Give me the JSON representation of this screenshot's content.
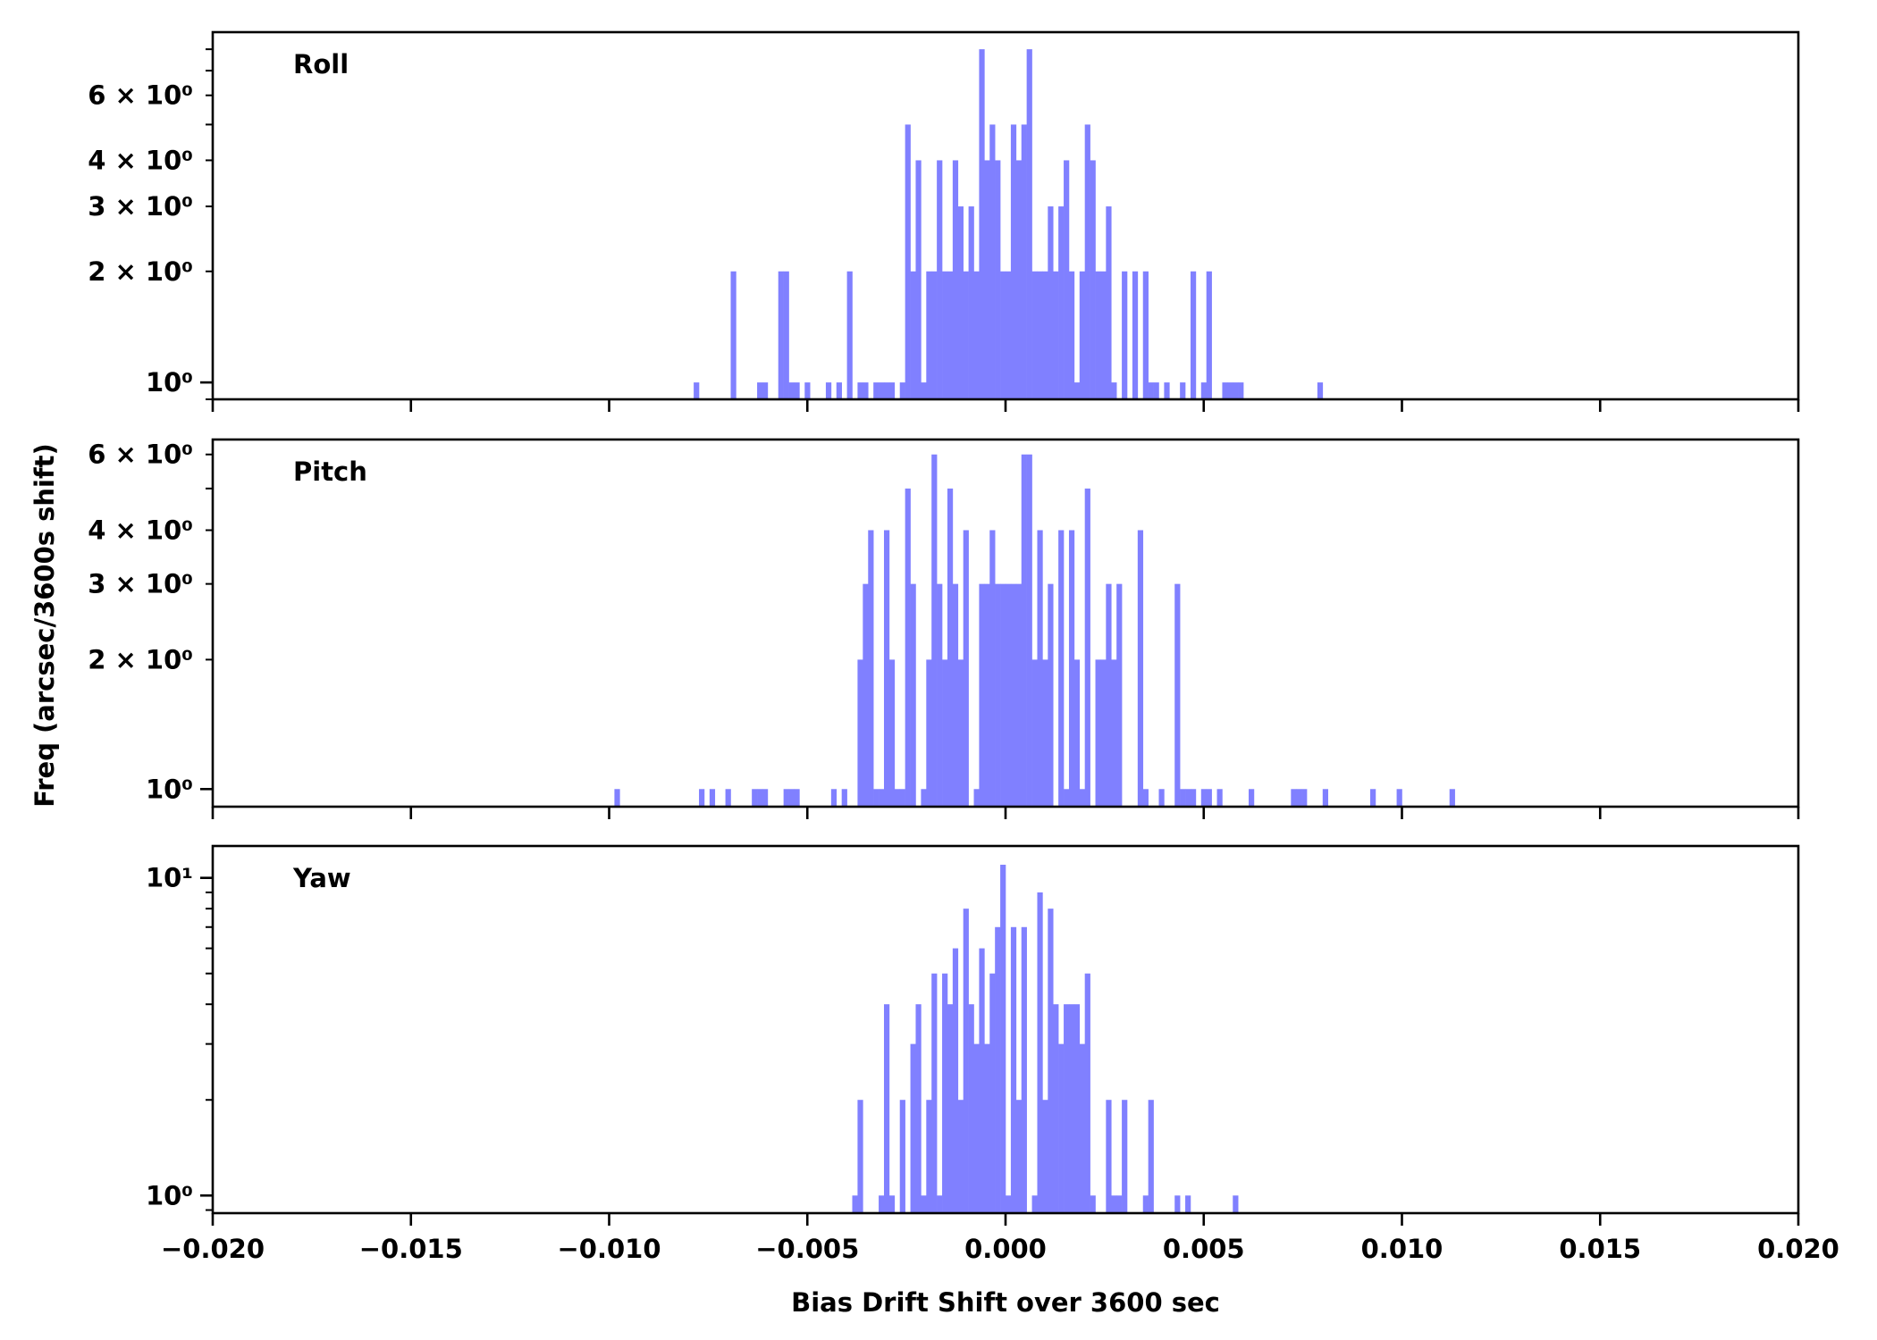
{
  "chart_data": [
    {
      "type": "bar",
      "title": "Roll",
      "xlim": [
        -0.02,
        0.02
      ],
      "x_ticks": [
        -0.02,
        -0.015,
        -0.01,
        -0.005,
        0.0,
        0.005,
        0.01,
        0.015,
        0.02
      ],
      "y_scale": "log",
      "ylim": [
        0.9,
        8.9
      ],
      "y_tick_labels": [
        {
          "value": 1,
          "label": "10⁰"
        },
        {
          "value": 2,
          "label": "2 × 10⁰"
        },
        {
          "value": 3,
          "label": "3 × 10⁰"
        },
        {
          "value": 4,
          "label": "4 × 10⁰"
        },
        {
          "value": 6,
          "label": "6 × 10⁰"
        }
      ],
      "color": "#8080ff",
      "bins": {
        "range": [
          -0.02,
          0.02
        ],
        "n_bins": 300,
        "first_left_edge": -0.0078667,
        "counts": [
          1,
          0,
          0,
          0,
          0,
          0,
          0,
          2,
          0,
          0,
          0,
          0,
          1,
          1,
          0,
          0,
          2,
          2,
          1,
          1,
          0,
          1,
          0,
          0,
          0,
          1,
          0,
          1,
          0,
          2,
          0,
          1,
          1,
          0,
          1,
          1,
          1,
          1,
          0,
          1,
          5,
          2,
          4,
          1,
          2,
          2,
          4,
          2,
          2,
          4,
          3,
          2,
          3,
          2,
          8,
          4,
          5,
          4,
          2,
          2,
          5,
          4,
          5,
          8,
          2,
          2,
          2,
          3,
          2,
          3,
          4,
          2,
          1,
          2,
          5,
          4,
          2,
          2,
          3,
          1,
          0,
          2,
          0,
          2,
          0,
          2,
          1,
          1,
          0,
          1,
          0,
          0,
          1,
          0,
          2,
          0,
          1,
          2,
          0,
          0,
          1,
          1,
          1,
          1,
          0,
          0,
          0,
          0,
          0,
          0,
          0,
          0,
          0,
          0,
          0,
          0,
          0,
          0,
          1
        ]
      }
    },
    {
      "type": "bar",
      "title": "Pitch",
      "ylabel": "Freq (arcsec/3600s shift)",
      "xlim": [
        -0.02,
        0.02
      ],
      "x_ticks": [
        -0.02,
        -0.015,
        -0.01,
        -0.005,
        0.0,
        0.005,
        0.01,
        0.015,
        0.02
      ],
      "y_scale": "log",
      "ylim": [
        0.91,
        6.5
      ],
      "y_tick_labels": [
        {
          "value": 1,
          "label": "10⁰"
        },
        {
          "value": 2,
          "label": "2 × 10⁰"
        },
        {
          "value": 3,
          "label": "3 × 10⁰"
        },
        {
          "value": 4,
          "label": "4 × 10⁰"
        },
        {
          "value": 6,
          "label": "6 × 10⁰"
        }
      ],
      "color": "#8080ff",
      "bins": {
        "range": [
          -0.02,
          0.02
        ],
        "n_bins": 300,
        "first_left_edge": -0.0098667,
        "counts": [
          1,
          0,
          0,
          0,
          0,
          0,
          0,
          0,
          0,
          0,
          0,
          0,
          0,
          0,
          0,
          0,
          1,
          0,
          1,
          0,
          0,
          1,
          0,
          0,
          0,
          0,
          1,
          1,
          1,
          0,
          0,
          0,
          1,
          1,
          1,
          0,
          0,
          0,
          0,
          0,
          0,
          1,
          0,
          1,
          0,
          0,
          2,
          3,
          4,
          1,
          1,
          4,
          2,
          1,
          1,
          5,
          3,
          0,
          1,
          2,
          6,
          3,
          2,
          5,
          3,
          2,
          4,
          0,
          1,
          3,
          3,
          4,
          3,
          3,
          3,
          3,
          3,
          6,
          6,
          2,
          4,
          2,
          3,
          0,
          4,
          1,
          4,
          2,
          1,
          5,
          0,
          2,
          2,
          3,
          2,
          3,
          0,
          0,
          0,
          4,
          1,
          0,
          0,
          1,
          0,
          0,
          3,
          1,
          1,
          1,
          0,
          1,
          1,
          0,
          1,
          0,
          0,
          0,
          0,
          0,
          1,
          0,
          0,
          0,
          0,
          0,
          0,
          0,
          1,
          1,
          1,
          0,
          0,
          0,
          1,
          0,
          0,
          0,
          0,
          0,
          0,
          0,
          0,
          1,
          0,
          0,
          0,
          0,
          1,
          0,
          0,
          0,
          0,
          0,
          0,
          0,
          0,
          0,
          1
        ]
      }
    },
    {
      "type": "bar",
      "title": "Yaw",
      "xlabel": "Bias Drift Shift over 3600 sec",
      "xlim": [
        -0.02,
        0.02
      ],
      "x_ticks": [
        -0.02,
        -0.015,
        -0.01,
        -0.005,
        0.0,
        0.005,
        0.01,
        0.015,
        0.02
      ],
      "x_tick_labels": [
        "−0.020",
        "−0.015",
        "−0.010",
        "−0.005",
        "0.000",
        "0.005",
        "0.010",
        "0.015",
        "0.020"
      ],
      "y_scale": "log",
      "ylim": [
        0.88,
        12.6
      ],
      "y_tick_labels": [
        {
          "value": 1,
          "label": "10⁰"
        },
        {
          "value": 10,
          "label": "10¹"
        }
      ],
      "color": "#8080ff",
      "bins": {
        "range": [
          -0.02,
          0.02
        ],
        "n_bins": 300,
        "first_left_edge": -0.0038667,
        "counts": [
          1,
          2,
          0,
          0,
          0,
          1,
          4,
          1,
          0,
          2,
          0,
          3,
          4,
          1,
          2,
          5,
          1,
          5,
          4,
          6,
          2,
          8,
          4,
          3,
          6,
          3,
          5,
          7,
          11,
          1,
          7,
          2,
          7,
          0,
          1,
          9,
          2,
          8,
          4,
          3,
          4,
          4,
          4,
          3,
          5,
          1,
          0,
          0,
          2,
          1,
          1,
          2,
          0,
          0,
          0,
          1,
          2,
          0,
          0,
          0,
          0,
          1,
          0,
          1,
          0,
          0,
          0,
          0,
          0,
          0,
          0,
          0,
          1
        ]
      }
    }
  ]
}
